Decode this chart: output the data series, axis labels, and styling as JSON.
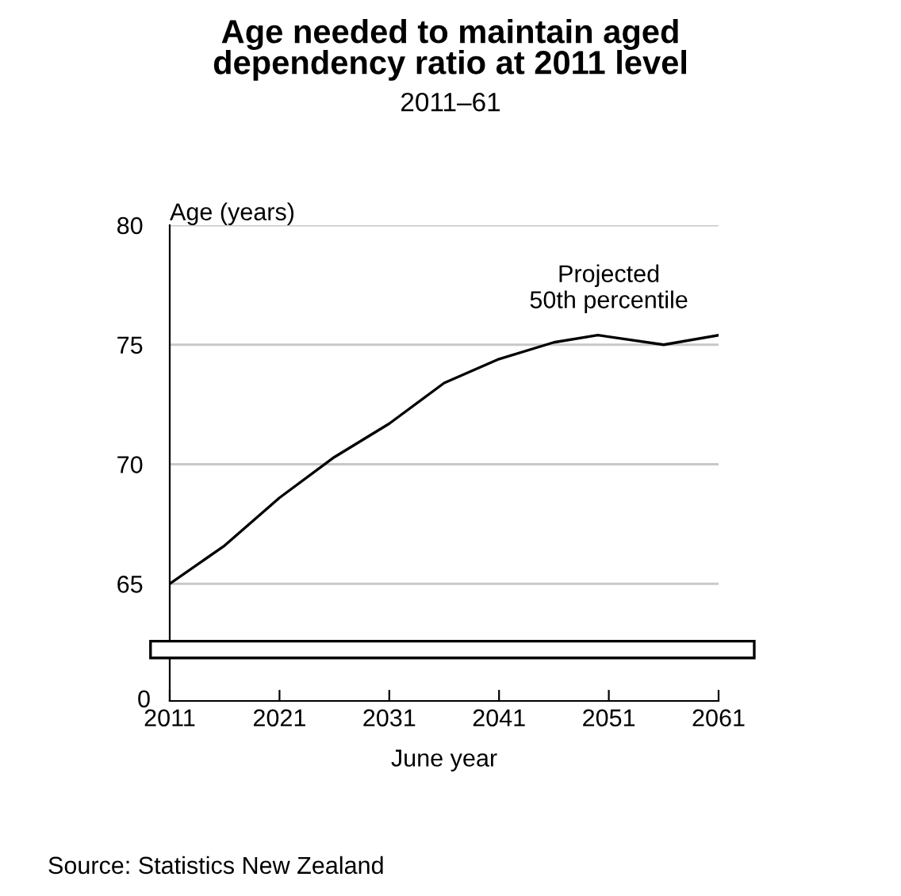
{
  "chart_data": {
    "type": "line",
    "title": "Age needed to maintain aged\ndependency ratio at 2011 level",
    "subtitle": "2011–61",
    "ylabel": "Age (years)",
    "xlabel": "June year",
    "annotations": [
      {
        "text": "Projected\n50th percentile",
        "x": 2051,
        "y": 75.4
      },
      "0",
      "Source: Statistics New Zealand"
    ],
    "series": [
      {
        "color": "#000000",
        "x": [
          2011,
          2016,
          2021,
          2026,
          2031,
          2036,
          2041,
          2046,
          2050,
          2056,
          2061
        ],
        "values": [
          65,
          66.6,
          68.6,
          70.3,
          71.7,
          73.4,
          74.4,
          75.1,
          75.4,
          75.0,
          75.4
        ]
      }
    ],
    "xlim": [
      2011,
      2061
    ],
    "xticks": [
      2011,
      2021,
      2031,
      2041,
      2051,
      2061
    ],
    "ylim": [
      60.1,
      80
    ],
    "yticks": [
      65,
      70,
      75,
      80
    ],
    "grid": "y",
    "bands": [
      {
        "axis": "y",
        "from": 61.9,
        "to": 62.6,
        "color": "#ffffff"
      }
    ]
  }
}
